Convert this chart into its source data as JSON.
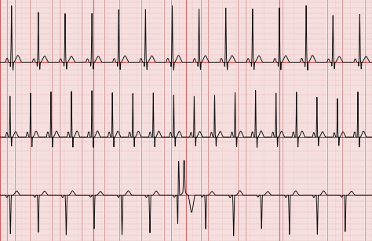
{
  "background_color": "#f9e8e8",
  "grid_minor_color": "#e8b8b8",
  "grid_major_color": "#cc8888",
  "grid_minor_lw": 0.3,
  "grid_major_lw": 0.6,
  "ecg_color": "#111111",
  "baseline_color": "#cc2222",
  "fig_width": 4.74,
  "fig_height": 3.08,
  "dpi": 100,
  "sample_rate": 500,
  "duration": 10.0,
  "vertical_line_color": "#cc5555",
  "vertical_line_lw": 0.8,
  "vertical_lines_x": [
    0.0,
    2.5,
    5.0,
    7.5,
    10.0
  ]
}
